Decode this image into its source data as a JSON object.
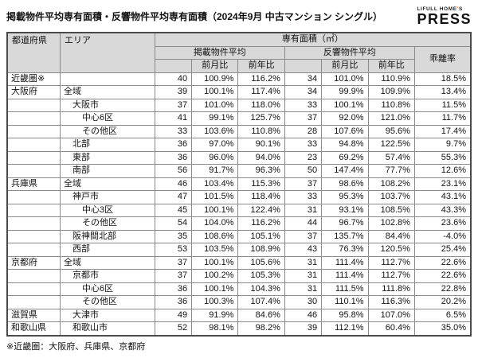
{
  "page": {
    "title": "掲載物件平均専有面積・反響物件平均専有面積（2024年9月 中古マンション シングル）",
    "footnote": "※近畿圏：大阪府、兵庫県、京都府"
  },
  "logo": {
    "brand_prefix": "LIFULL HOME",
    "apostrophe": "’",
    "brand_suffix": "S",
    "name": "PRESS",
    "accent_color": "#ff6f00"
  },
  "table": {
    "headers": {
      "prefecture": "都道府県",
      "area": "エリア",
      "group": "専有面積（㎡）",
      "listed": "掲載物件平均",
      "response": "反響物件平均",
      "mom": "前月比",
      "yoy": "前年比",
      "divergence": "乖離率"
    },
    "rows": [
      {
        "pref": "近畿圏※",
        "area": "",
        "indent": 0,
        "listed": "40",
        "listed_mom": "100.9%",
        "listed_yoy": "116.2%",
        "resp": "34",
        "resp_mom": "101.0%",
        "resp_yoy": "110.9%",
        "div": "18.5%",
        "group_start": true
      },
      {
        "pref": "大阪府",
        "area": "全域",
        "indent": 0,
        "listed": "39",
        "listed_mom": "100.1%",
        "listed_yoy": "117.4%",
        "resp": "34",
        "resp_mom": "99.9%",
        "resp_yoy": "109.9%",
        "div": "13.4%",
        "group_start": true
      },
      {
        "pref": "",
        "area": "大阪市",
        "indent": 1,
        "listed": "37",
        "listed_mom": "101.0%",
        "listed_yoy": "118.0%",
        "resp": "33",
        "resp_mom": "100.1%",
        "resp_yoy": "110.8%",
        "div": "11.5%",
        "group_start": false
      },
      {
        "pref": "",
        "area": "中心6区",
        "indent": 2,
        "listed": "41",
        "listed_mom": "99.1%",
        "listed_yoy": "125.7%",
        "resp": "37",
        "resp_mom": "92.0%",
        "resp_yoy": "121.0%",
        "div": "11.7%",
        "group_start": false
      },
      {
        "pref": "",
        "area": "その他区",
        "indent": 2,
        "listed": "33",
        "listed_mom": "103.6%",
        "listed_yoy": "110.8%",
        "resp": "28",
        "resp_mom": "107.6%",
        "resp_yoy": "95.6%",
        "div": "17.4%",
        "group_start": false
      },
      {
        "pref": "",
        "area": "北部",
        "indent": 1,
        "listed": "36",
        "listed_mom": "97.0%",
        "listed_yoy": "90.1%",
        "resp": "33",
        "resp_mom": "94.8%",
        "resp_yoy": "122.5%",
        "div": "9.7%",
        "group_start": false
      },
      {
        "pref": "",
        "area": "東部",
        "indent": 1,
        "listed": "36",
        "listed_mom": "96.0%",
        "listed_yoy": "94.0%",
        "resp": "23",
        "resp_mom": "69.2%",
        "resp_yoy": "57.4%",
        "div": "55.3%",
        "group_start": false
      },
      {
        "pref": "",
        "area": "南部",
        "indent": 1,
        "listed": "56",
        "listed_mom": "91.7%",
        "listed_yoy": "96.3%",
        "resp": "50",
        "resp_mom": "147.4%",
        "resp_yoy": "77.7%",
        "div": "12.6%",
        "group_start": false
      },
      {
        "pref": "兵庫県",
        "area": "全域",
        "indent": 0,
        "listed": "46",
        "listed_mom": "103.4%",
        "listed_yoy": "115.3%",
        "resp": "37",
        "resp_mom": "98.6%",
        "resp_yoy": "108.2%",
        "div": "23.1%",
        "group_start": true
      },
      {
        "pref": "",
        "area": "神戸市",
        "indent": 1,
        "listed": "47",
        "listed_mom": "101.5%",
        "listed_yoy": "118.4%",
        "resp": "33",
        "resp_mom": "95.3%",
        "resp_yoy": "103.7%",
        "div": "43.1%",
        "group_start": false
      },
      {
        "pref": "",
        "area": "中心3区",
        "indent": 2,
        "listed": "45",
        "listed_mom": "100.1%",
        "listed_yoy": "122.4%",
        "resp": "31",
        "resp_mom": "93.1%",
        "resp_yoy": "108.5%",
        "div": "43.3%",
        "group_start": false
      },
      {
        "pref": "",
        "area": "その他区",
        "indent": 2,
        "listed": "54",
        "listed_mom": "104.0%",
        "listed_yoy": "116.2%",
        "resp": "44",
        "resp_mom": "96.7%",
        "resp_yoy": "102.8%",
        "div": "23.6%",
        "group_start": false
      },
      {
        "pref": "",
        "area": "阪神間北部",
        "indent": 1,
        "listed": "35",
        "listed_mom": "108.6%",
        "listed_yoy": "105.1%",
        "resp": "37",
        "resp_mom": "135.7%",
        "resp_yoy": "84.4%",
        "div": "-4.0%",
        "group_start": false
      },
      {
        "pref": "",
        "area": "西部",
        "indent": 1,
        "listed": "53",
        "listed_mom": "103.5%",
        "listed_yoy": "108.9%",
        "resp": "43",
        "resp_mom": "76.3%",
        "resp_yoy": "120.5%",
        "div": "25.4%",
        "group_start": false
      },
      {
        "pref": "京都府",
        "area": "全域",
        "indent": 0,
        "listed": "37",
        "listed_mom": "100.1%",
        "listed_yoy": "105.6%",
        "resp": "31",
        "resp_mom": "111.4%",
        "resp_yoy": "112.7%",
        "div": "22.6%",
        "group_start": true
      },
      {
        "pref": "",
        "area": "京都市",
        "indent": 1,
        "listed": "37",
        "listed_mom": "100.2%",
        "listed_yoy": "105.3%",
        "resp": "31",
        "resp_mom": "111.4%",
        "resp_yoy": "112.7%",
        "div": "22.6%",
        "group_start": false
      },
      {
        "pref": "",
        "area": "中心6区",
        "indent": 2,
        "listed": "36",
        "listed_mom": "100.1%",
        "listed_yoy": "104.3%",
        "resp": "31",
        "resp_mom": "111.5%",
        "resp_yoy": "111.8%",
        "div": "22.8%",
        "group_start": false
      },
      {
        "pref": "",
        "area": "その他区",
        "indent": 2,
        "listed": "36",
        "listed_mom": "100.3%",
        "listed_yoy": "107.4%",
        "resp": "30",
        "resp_mom": "110.1%",
        "resp_yoy": "116.3%",
        "div": "20.2%",
        "group_start": false
      },
      {
        "pref": "滋賀県",
        "area": "大津市",
        "indent": 1,
        "listed": "49",
        "listed_mom": "91.9%",
        "listed_yoy": "84.6%",
        "resp": "46",
        "resp_mom": "95.8%",
        "resp_yoy": "107.0%",
        "div": "6.5%",
        "group_start": true
      },
      {
        "pref": "和歌山県",
        "area": "和歌山市",
        "indent": 1,
        "listed": "52",
        "listed_mom": "98.1%",
        "listed_yoy": "98.2%",
        "resp": "39",
        "resp_mom": "112.1%",
        "resp_yoy": "60.4%",
        "div": "35.0%",
        "group_start": true
      }
    ]
  }
}
